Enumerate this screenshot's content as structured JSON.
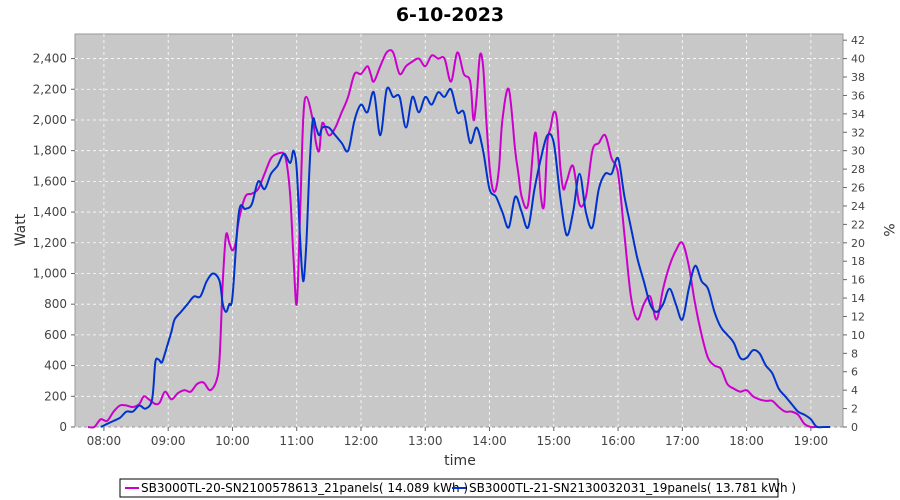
{
  "chart_data": {
    "type": "line",
    "title": "6-10-2023",
    "xlabel": "time",
    "ylabel": "Watt",
    "y2label": "%",
    "x_ticks": [
      "08:00",
      "09:00",
      "10:00",
      "11:00",
      "12:00",
      "13:00",
      "14:00",
      "15:00",
      "16:00",
      "17:00",
      "18:00",
      "19:00"
    ],
    "x_range": [
      7.55,
      19.5
    ],
    "ylim": [
      0,
      2560
    ],
    "y_ticks": [
      0,
      200,
      400,
      600,
      800,
      1000,
      1200,
      1400,
      1600,
      1800,
      2000,
      2200,
      2400
    ],
    "y_tick_labels": [
      "0",
      "200",
      "400",
      "600",
      "800",
      "1,000",
      "1,200",
      "1,400",
      "1,600",
      "1,800",
      "2,000",
      "2,200",
      "2,400"
    ],
    "y2lim": [
      0,
      42.67
    ],
    "y2_ticks": [
      0,
      2,
      4,
      6,
      8,
      10,
      12,
      14,
      16,
      18,
      20,
      22,
      24,
      26,
      28,
      30,
      32,
      34,
      36,
      38,
      40,
      42
    ],
    "grid": true,
    "legend_position": "bottom",
    "series": [
      {
        "name": "SB3000TL-20-SN2100578613_21panels( 14.089 kWh )",
        "color": "#cc00cc",
        "x": [
          7.75,
          7.85,
          7.95,
          8.05,
          8.15,
          8.25,
          8.35,
          8.45,
          8.55,
          8.62,
          8.7,
          8.8,
          8.87,
          8.95,
          9.05,
          9.15,
          9.25,
          9.35,
          9.45,
          9.55,
          9.65,
          9.75,
          9.8,
          9.85,
          9.9,
          9.95,
          10.0,
          10.05,
          10.1,
          10.2,
          10.3,
          10.4,
          10.5,
          10.6,
          10.7,
          10.8,
          10.85,
          10.9,
          10.95,
          11.0,
          11.05,
          11.1,
          11.15,
          11.25,
          11.3,
          11.35,
          11.4,
          11.5,
          11.6,
          11.7,
          11.8,
          11.9,
          12.0,
          12.1,
          12.15,
          12.2,
          12.3,
          12.4,
          12.5,
          12.6,
          12.7,
          12.8,
          12.9,
          13.0,
          13.1,
          13.2,
          13.3,
          13.4,
          13.5,
          13.6,
          13.7,
          13.75,
          13.8,
          13.85,
          13.9,
          13.95,
          14.0,
          14.05,
          14.1,
          14.15,
          14.2,
          14.3,
          14.4,
          14.45,
          14.5,
          14.6,
          14.7,
          14.75,
          14.8,
          14.85,
          14.9,
          14.95,
          15.0,
          15.05,
          15.1,
          15.15,
          15.2,
          15.3,
          15.4,
          15.5,
          15.6,
          15.7,
          15.8,
          15.9,
          16.0,
          16.1,
          16.2,
          16.3,
          16.4,
          16.5,
          16.6,
          16.7,
          16.8,
          16.9,
          17.0,
          17.1,
          17.2,
          17.3,
          17.4,
          17.5,
          17.6,
          17.7,
          17.8,
          17.9,
          18.0,
          18.1,
          18.2,
          18.3,
          18.4,
          18.5,
          18.6,
          18.7,
          18.8,
          18.9,
          19.0,
          19.05,
          19.1
        ],
        "y": [
          0,
          0,
          50,
          40,
          100,
          140,
          140,
          130,
          150,
          200,
          180,
          150,
          160,
          230,
          180,
          220,
          240,
          230,
          280,
          290,
          240,
          300,
          450,
          950,
          1250,
          1200,
          1150,
          1200,
          1350,
          1500,
          1520,
          1550,
          1650,
          1750,
          1780,
          1780,
          1700,
          1500,
          1100,
          800,
          1350,
          2000,
          2150,
          2000,
          1850,
          1800,
          1980,
          1900,
          1950,
          2050,
          2150,
          2300,
          2300,
          2350,
          2300,
          2250,
          2350,
          2440,
          2440,
          2300,
          2350,
          2380,
          2400,
          2350,
          2420,
          2400,
          2400,
          2250,
          2440,
          2300,
          2250,
          2000,
          2150,
          2420,
          2350,
          2000,
          1700,
          1550,
          1550,
          1700,
          2000,
          2200,
          1800,
          1650,
          1500,
          1450,
          1900,
          1800,
          1500,
          1450,
          1850,
          1950,
          2050,
          2000,
          1700,
          1550,
          1600,
          1700,
          1450,
          1500,
          1800,
          1850,
          1900,
          1750,
          1650,
          1250,
          850,
          700,
          800,
          850,
          700,
          900,
          1050,
          1150,
          1200,
          1050,
          800,
          600,
          450,
          400,
          380,
          280,
          250,
          230,
          240,
          200,
          180,
          170,
          170,
          130,
          100,
          100,
          80,
          20,
          0,
          0,
          0
        ],
        "stroke_width": 2
      },
      {
        "name": "SB3000TL-21-SN2130032031_19panels( 13.781 kWh )",
        "color": "#0033cc",
        "x": [
          7.95,
          8.05,
          8.15,
          8.25,
          8.35,
          8.45,
          8.55,
          8.65,
          8.75,
          8.8,
          8.85,
          8.9,
          8.95,
          9.0,
          9.05,
          9.1,
          9.2,
          9.3,
          9.4,
          9.5,
          9.6,
          9.7,
          9.8,
          9.85,
          9.9,
          9.95,
          10.0,
          10.1,
          10.2,
          10.3,
          10.4,
          10.5,
          10.6,
          10.7,
          10.8,
          10.9,
          10.95,
          11.0,
          11.05,
          11.1,
          11.15,
          11.2,
          11.25,
          11.3,
          11.35,
          11.4,
          11.5,
          11.6,
          11.7,
          11.8,
          11.9,
          12.0,
          12.1,
          12.2,
          12.3,
          12.4,
          12.5,
          12.6,
          12.7,
          12.8,
          12.9,
          13.0,
          13.1,
          13.2,
          13.3,
          13.4,
          13.5,
          13.6,
          13.7,
          13.8,
          13.9,
          14.0,
          14.1,
          14.2,
          14.3,
          14.4,
          14.5,
          14.6,
          14.7,
          14.8,
          14.9,
          15.0,
          15.1,
          15.2,
          15.3,
          15.4,
          15.5,
          15.6,
          15.7,
          15.8,
          15.9,
          16.0,
          16.1,
          16.2,
          16.3,
          16.4,
          16.5,
          16.6,
          16.7,
          16.8,
          16.9,
          17.0,
          17.1,
          17.2,
          17.3,
          17.4,
          17.5,
          17.6,
          17.7,
          17.8,
          17.9,
          18.0,
          18.1,
          18.2,
          18.3,
          18.4,
          18.5,
          18.6,
          18.7,
          18.8,
          18.9,
          19.0,
          19.05,
          19.1,
          19.2,
          19.3
        ],
        "y": [
          0,
          20,
          40,
          60,
          100,
          100,
          140,
          120,
          180,
          420,
          440,
          420,
          480,
          550,
          620,
          700,
          750,
          800,
          850,
          850,
          950,
          1000,
          950,
          800,
          750,
          800,
          850,
          1400,
          1420,
          1450,
          1600,
          1550,
          1650,
          1700,
          1780,
          1720,
          1800,
          1680,
          1250,
          950,
          1200,
          1700,
          2000,
          1950,
          1900,
          1950,
          1950,
          1900,
          1850,
          1800,
          2000,
          2100,
          2050,
          2180,
          1900,
          2200,
          2150,
          2150,
          1950,
          2150,
          2050,
          2150,
          2100,
          2180,
          2150,
          2200,
          2050,
          2050,
          1850,
          1950,
          1800,
          1550,
          1500,
          1400,
          1300,
          1500,
          1400,
          1300,
          1550,
          1750,
          1900,
          1850,
          1500,
          1250,
          1400,
          1650,
          1400,
          1300,
          1550,
          1650,
          1650,
          1750,
          1500,
          1300,
          1100,
          950,
          800,
          750,
          800,
          900,
          800,
          700,
          900,
          1050,
          950,
          900,
          750,
          650,
          600,
          550,
          450,
          450,
          500,
          480,
          400,
          350,
          250,
          200,
          150,
          100,
          80,
          50,
          20,
          0,
          0,
          0
        ],
        "stroke_width": 2
      }
    ]
  }
}
